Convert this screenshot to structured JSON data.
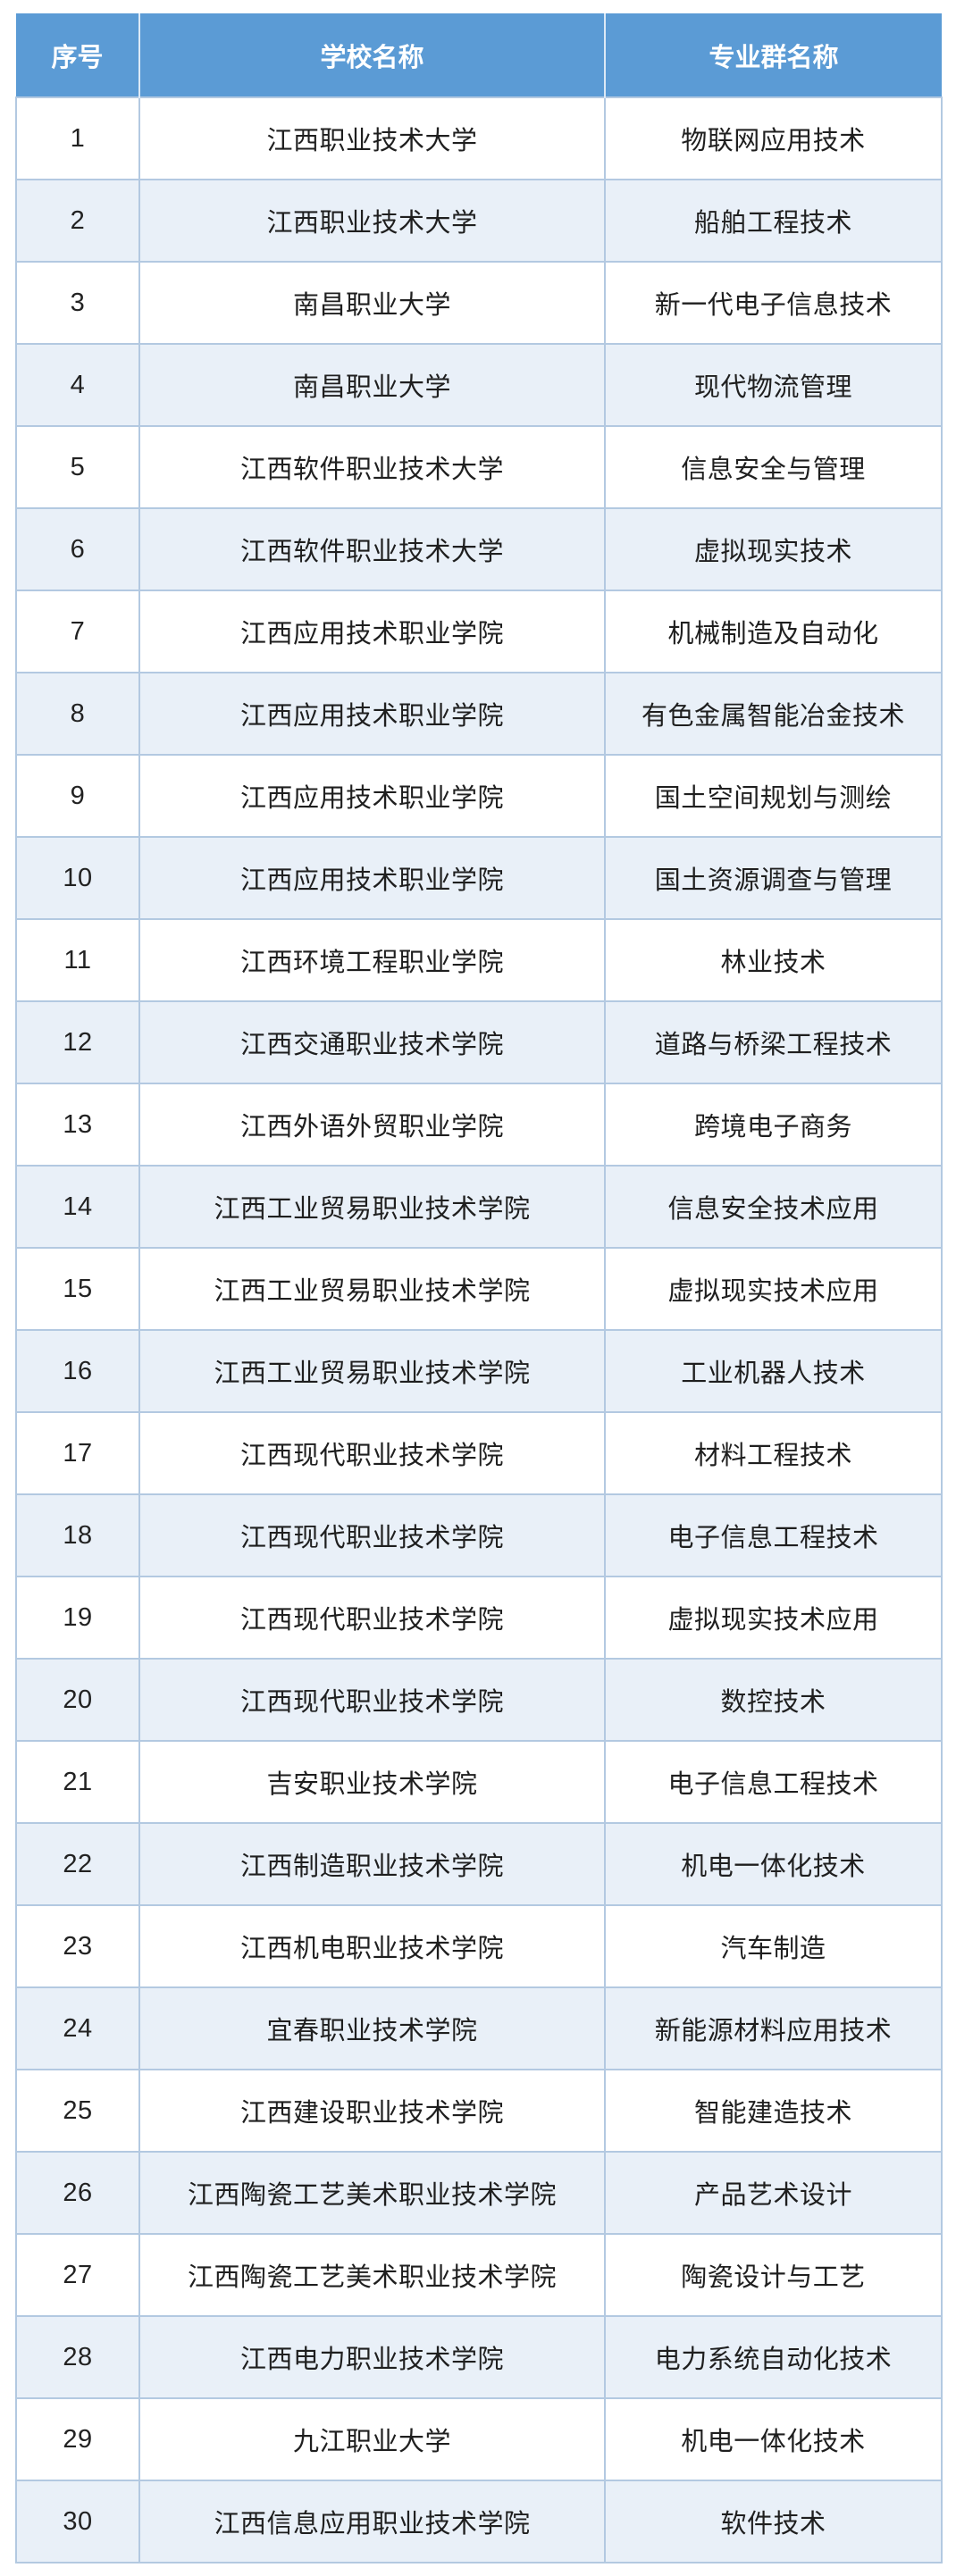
{
  "accent_color": "#5b9bd5",
  "stripe_color": "#e9f0f8",
  "border_color": "#b3c9e1",
  "table": {
    "headers": [
      "序号",
      "学校名称",
      "专业群名称"
    ],
    "rows": [
      {
        "no": "1",
        "school": "江西职业技术大学",
        "group": "物联网应用技术"
      },
      {
        "no": "2",
        "school": "江西职业技术大学",
        "group": "船舶工程技术"
      },
      {
        "no": "3",
        "school": "南昌职业大学",
        "group": "新一代电子信息技术"
      },
      {
        "no": "4",
        "school": "南昌职业大学",
        "group": "现代物流管理"
      },
      {
        "no": "5",
        "school": "江西软件职业技术大学",
        "group": "信息安全与管理"
      },
      {
        "no": "6",
        "school": "江西软件职业技术大学",
        "group": "虚拟现实技术"
      },
      {
        "no": "7",
        "school": "江西应用技术职业学院",
        "group": "机械制造及自动化"
      },
      {
        "no": "8",
        "school": "江西应用技术职业学院",
        "group": "有色金属智能冶金技术"
      },
      {
        "no": "9",
        "school": "江西应用技术职业学院",
        "group": "国土空间规划与测绘"
      },
      {
        "no": "10",
        "school": "江西应用技术职业学院",
        "group": "国土资源调查与管理"
      },
      {
        "no": "11",
        "school": "江西环境工程职业学院",
        "group": "林业技术"
      },
      {
        "no": "12",
        "school": "江西交通职业技术学院",
        "group": "道路与桥梁工程技术"
      },
      {
        "no": "13",
        "school": "江西外语外贸职业学院",
        "group": "跨境电子商务"
      },
      {
        "no": "14",
        "school": "江西工业贸易职业技术学院",
        "group": "信息安全技术应用"
      },
      {
        "no": "15",
        "school": "江西工业贸易职业技术学院",
        "group": "虚拟现实技术应用"
      },
      {
        "no": "16",
        "school": "江西工业贸易职业技术学院",
        "group": "工业机器人技术"
      },
      {
        "no": "17",
        "school": "江西现代职业技术学院",
        "group": "材料工程技术"
      },
      {
        "no": "18",
        "school": "江西现代职业技术学院",
        "group": "电子信息工程技术"
      },
      {
        "no": "19",
        "school": "江西现代职业技术学院",
        "group": "虚拟现实技术应用"
      },
      {
        "no": "20",
        "school": "江西现代职业技术学院",
        "group": "数控技术"
      },
      {
        "no": "21",
        "school": "吉安职业技术学院",
        "group": "电子信息工程技术"
      },
      {
        "no": "22",
        "school": "江西制造职业技术学院",
        "group": "机电一体化技术"
      },
      {
        "no": "23",
        "school": "江西机电职业技术学院",
        "group": "汽车制造"
      },
      {
        "no": "24",
        "school": "宜春职业技术学院",
        "group": "新能源材料应用技术"
      },
      {
        "no": "25",
        "school": "江西建设职业技术学院",
        "group": "智能建造技术"
      },
      {
        "no": "26",
        "school": "江西陶瓷工艺美术职业技术学院",
        "group": "产品艺术设计"
      },
      {
        "no": "27",
        "school": "江西陶瓷工艺美术职业技术学院",
        "group": "陶瓷设计与工艺"
      },
      {
        "no": "28",
        "school": "江西电力职业技术学院",
        "group": "电力系统自动化技术"
      },
      {
        "no": "29",
        "school": "九江职业大学",
        "group": "机电一体化技术"
      },
      {
        "no": "30",
        "school": "江西信息应用职业技术学院",
        "group": "软件技术"
      }
    ]
  },
  "chart_data": {
    "type": "table",
    "title": "",
    "columns": [
      "序号",
      "学校名称",
      "专业群名称"
    ],
    "rows": [
      [
        "1",
        "江西职业技术大学",
        "物联网应用技术"
      ],
      [
        "2",
        "江西职业技术大学",
        "船舶工程技术"
      ],
      [
        "3",
        "南昌职业大学",
        "新一代电子信息技术"
      ],
      [
        "4",
        "南昌职业大学",
        "现代物流管理"
      ],
      [
        "5",
        "江西软件职业技术大学",
        "信息安全与管理"
      ],
      [
        "6",
        "江西软件职业技术大学",
        "虚拟现实技术"
      ],
      [
        "7",
        "江西应用技术职业学院",
        "机械制造及自动化"
      ],
      [
        "8",
        "江西应用技术职业学院",
        "有色金属智能冶金技术"
      ],
      [
        "9",
        "江西应用技术职业学院",
        "国土空间规划与测绘"
      ],
      [
        "10",
        "江西应用技术职业学院",
        "国土资源调查与管理"
      ],
      [
        "11",
        "江西环境工程职业学院",
        "林业技术"
      ],
      [
        "12",
        "江西交通职业技术学院",
        "道路与桥梁工程技术"
      ],
      [
        "13",
        "江西外语外贸职业学院",
        "跨境电子商务"
      ],
      [
        "14",
        "江西工业贸易职业技术学院",
        "信息安全技术应用"
      ],
      [
        "15",
        "江西工业贸易职业技术学院",
        "虚拟现实技术应用"
      ],
      [
        "16",
        "江西工业贸易职业技术学院",
        "工业机器人技术"
      ],
      [
        "17",
        "江西现代职业技术学院",
        "材料工程技术"
      ],
      [
        "18",
        "江西现代职业技术学院",
        "电子信息工程技术"
      ],
      [
        "19",
        "江西现代职业技术学院",
        "虚拟现实技术应用"
      ],
      [
        "20",
        "江西现代职业技术学院",
        "数控技术"
      ],
      [
        "21",
        "吉安职业技术学院",
        "电子信息工程技术"
      ],
      [
        "22",
        "江西制造职业技术学院",
        "机电一体化技术"
      ],
      [
        "23",
        "江西机电职业技术学院",
        "汽车制造"
      ],
      [
        "24",
        "宜春职业技术学院",
        "新能源材料应用技术"
      ],
      [
        "25",
        "江西建设职业技术学院",
        "智能建造技术"
      ],
      [
        "26",
        "江西陶瓷工艺美术职业技术学院",
        "产品艺术设计"
      ],
      [
        "27",
        "江西陶瓷工艺美术职业技术学院",
        "陶瓷设计与工艺"
      ],
      [
        "28",
        "江西电力职业技术学院",
        "电力系统自动化技术"
      ],
      [
        "29",
        "九江职业大学",
        "机电一体化技术"
      ],
      [
        "30",
        "江西信息应用职业技术学院",
        "软件技术"
      ]
    ],
    "layout": {
      "header_bg": "#5b9bd5",
      "header_text_color": "#ffffff",
      "zebra_striping": true,
      "stripe_bg": "#e9f0f8",
      "grid": true
    }
  }
}
